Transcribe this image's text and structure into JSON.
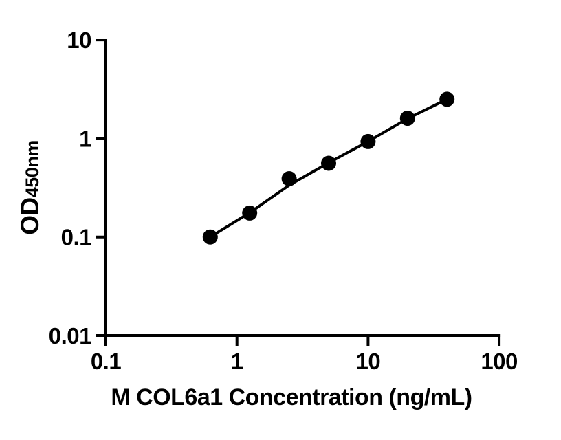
{
  "figure": {
    "background": "#ffffff"
  },
  "chart_data": {
    "type": "scatter",
    "title": "",
    "xlabel": "M COL6a1 Concentration (ng/mL)",
    "ylabel": "OD450nm",
    "ylabel_main": "OD",
    "ylabel_sub": "450nm",
    "x_scale": "log",
    "y_scale": "log",
    "xlim": [
      0.1,
      100
    ],
    "ylim": [
      0.01,
      10
    ],
    "grid": false,
    "legend": false,
    "x_ticks": [
      {
        "value": 0.1,
        "label": "0.1"
      },
      {
        "value": 1,
        "label": "1"
      },
      {
        "value": 10,
        "label": "10"
      },
      {
        "value": 100,
        "label": "100"
      }
    ],
    "y_ticks": [
      {
        "value": 10,
        "label": "10"
      },
      {
        "value": 1,
        "label": "1"
      },
      {
        "value": 0.1,
        "label": "0.1"
      },
      {
        "value": 0.01,
        "label": "0.01"
      }
    ],
    "series": [
      {
        "name": "standard-curve-points",
        "marker": "circle",
        "color": "#000000",
        "points": [
          {
            "x": 0.625,
            "y": 0.1
          },
          {
            "x": 1.25,
            "y": 0.175
          },
          {
            "x": 2.5,
            "y": 0.39
          },
          {
            "x": 5,
            "y": 0.56
          },
          {
            "x": 10,
            "y": 0.93
          },
          {
            "x": 20,
            "y": 1.6
          },
          {
            "x": 40,
            "y": 2.5
          }
        ]
      }
    ],
    "fit_line": [
      [
        0.625,
        0.1
      ],
      [
        1.25,
        0.176
      ],
      [
        2.5,
        0.335
      ],
      [
        5,
        0.565
      ],
      [
        10,
        0.93
      ],
      [
        20,
        1.585
      ],
      [
        40,
        2.5
      ]
    ],
    "colors": {
      "axis": "#000000",
      "marker": "#000000",
      "line": "#000000",
      "background": "#ffffff"
    }
  }
}
